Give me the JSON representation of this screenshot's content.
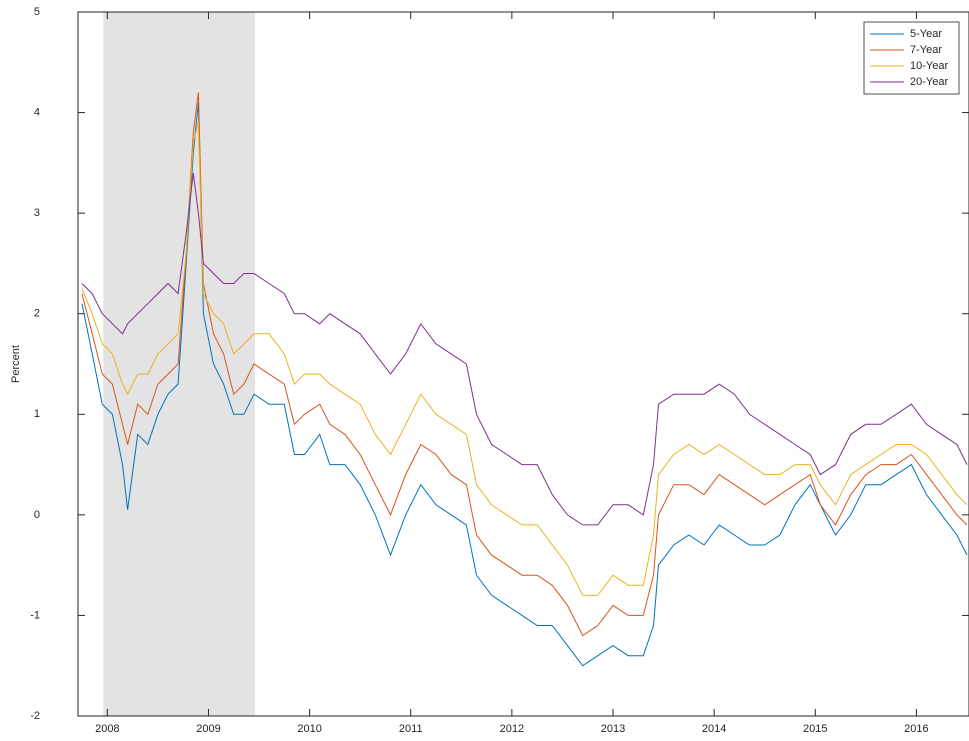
{
  "chart_data": {
    "type": "line",
    "y_label": "Percent",
    "x": [
      2007.75,
      2007.85,
      2007.95,
      2008.05,
      2008.15,
      2008.2,
      2008.3,
      2008.4,
      2008.5,
      2008.6,
      2008.7,
      2008.78,
      2008.85,
      2008.9,
      2008.95,
      2009.05,
      2009.15,
      2009.25,
      2009.35,
      2009.45,
      2009.6,
      2009.75,
      2009.85,
      2009.95,
      2010.1,
      2010.2,
      2010.35,
      2010.5,
      2010.65,
      2010.8,
      2010.95,
      2011.1,
      2011.25,
      2011.4,
      2011.55,
      2011.65,
      2011.8,
      2011.95,
      2012.1,
      2012.25,
      2012.4,
      2012.55,
      2012.7,
      2012.85,
      2013.0,
      2013.15,
      2013.3,
      2013.4,
      2013.45,
      2013.6,
      2013.75,
      2013.9,
      2014.05,
      2014.2,
      2014.35,
      2014.5,
      2014.65,
      2014.8,
      2014.95,
      2015.05,
      2015.2,
      2015.35,
      2015.5,
      2015.65,
      2015.8,
      2015.95,
      2016.1,
      2016.25,
      2016.4,
      2016.5
    ],
    "series": [
      {
        "name": "5-Year",
        "color": "#0072bd",
        "values": [
          2.1,
          1.6,
          1.1,
          1.0,
          0.5,
          0.05,
          0.8,
          0.7,
          1.0,
          1.2,
          1.3,
          2.5,
          3.6,
          4.1,
          2.0,
          1.5,
          1.3,
          1.0,
          1.0,
          1.2,
          1.1,
          1.1,
          0.6,
          0.6,
          0.8,
          0.5,
          0.5,
          0.3,
          0.0,
          -0.4,
          0.0,
          0.3,
          0.1,
          0.0,
          -0.1,
          -0.6,
          -0.8,
          -0.9,
          -1.0,
          -1.1,
          -1.1,
          -1.3,
          -1.5,
          -1.4,
          -1.3,
          -1.4,
          -1.4,
          -1.1,
          -0.5,
          -0.3,
          -0.2,
          -0.3,
          -0.1,
          -0.2,
          -0.3,
          -0.3,
          -0.2,
          0.1,
          0.3,
          0.1,
          -0.2,
          0.0,
          0.3,
          0.3,
          0.4,
          0.5,
          0.2,
          0.0,
          -0.2,
          -0.4
        ]
      },
      {
        "name": "7-Year",
        "color": "#d95319",
        "values": [
          2.2,
          1.8,
          1.4,
          1.3,
          0.9,
          0.7,
          1.1,
          1.0,
          1.3,
          1.4,
          1.5,
          2.6,
          3.8,
          4.2,
          2.3,
          1.8,
          1.6,
          1.2,
          1.3,
          1.5,
          1.4,
          1.3,
          0.9,
          1.0,
          1.1,
          0.9,
          0.8,
          0.6,
          0.3,
          0.0,
          0.4,
          0.7,
          0.6,
          0.4,
          0.3,
          -0.2,
          -0.4,
          -0.5,
          -0.6,
          -0.6,
          -0.7,
          -0.9,
          -1.2,
          -1.1,
          -0.9,
          -1.0,
          -1.0,
          -0.6,
          0.0,
          0.3,
          0.3,
          0.2,
          0.4,
          0.3,
          0.2,
          0.1,
          0.2,
          0.3,
          0.4,
          0.1,
          -0.1,
          0.2,
          0.4,
          0.5,
          0.5,
          0.6,
          0.4,
          0.2,
          0.0,
          -0.1
        ]
      },
      {
        "name": "10-Year",
        "color": "#edb120",
        "values": [
          2.25,
          2.0,
          1.7,
          1.6,
          1.3,
          1.2,
          1.4,
          1.4,
          1.6,
          1.7,
          1.8,
          2.6,
          3.7,
          3.9,
          2.2,
          2.0,
          1.9,
          1.6,
          1.7,
          1.8,
          1.8,
          1.6,
          1.3,
          1.4,
          1.4,
          1.3,
          1.2,
          1.1,
          0.8,
          0.6,
          0.9,
          1.2,
          1.0,
          0.9,
          0.8,
          0.3,
          0.1,
          0.0,
          -0.1,
          -0.1,
          -0.3,
          -0.5,
          -0.8,
          -0.8,
          -0.6,
          -0.7,
          -0.7,
          -0.2,
          0.4,
          0.6,
          0.7,
          0.6,
          0.7,
          0.6,
          0.5,
          0.4,
          0.4,
          0.5,
          0.5,
          0.3,
          0.1,
          0.4,
          0.5,
          0.6,
          0.7,
          0.7,
          0.6,
          0.4,
          0.2,
          0.1
        ]
      },
      {
        "name": "20-Year",
        "color": "#7e2f8e",
        "values": [
          2.3,
          2.2,
          2.0,
          1.9,
          1.8,
          1.9,
          2.0,
          2.1,
          2.2,
          2.3,
          2.2,
          2.8,
          3.4,
          3.0,
          2.5,
          2.4,
          2.3,
          2.3,
          2.4,
          2.4,
          2.3,
          2.2,
          2.0,
          2.0,
          1.9,
          2.0,
          1.9,
          1.8,
          1.6,
          1.4,
          1.6,
          1.9,
          1.7,
          1.6,
          1.5,
          1.0,
          0.7,
          0.6,
          0.5,
          0.5,
          0.2,
          0.0,
          -0.1,
          -0.1,
          0.1,
          0.1,
          0.0,
          0.5,
          1.1,
          1.2,
          1.2,
          1.2,
          1.3,
          1.2,
          1.0,
          0.9,
          0.8,
          0.7,
          0.6,
          0.4,
          0.5,
          0.8,
          0.9,
          0.9,
          1.0,
          1.1,
          0.9,
          0.8,
          0.7,
          0.5
        ]
      }
    ],
    "shaded_region": [
      2007.96,
      2009.46
    ],
    "xlim": [
      2007.71,
      2016.52
    ],
    "xticks": [
      2008,
      2009,
      2010,
      2011,
      2012,
      2013,
      2014,
      2015,
      2016
    ],
    "ylim": [
      -2,
      5
    ],
    "yticks": [
      -2,
      -1,
      0,
      1,
      2,
      3,
      4,
      5
    ],
    "legend": "top-right"
  }
}
